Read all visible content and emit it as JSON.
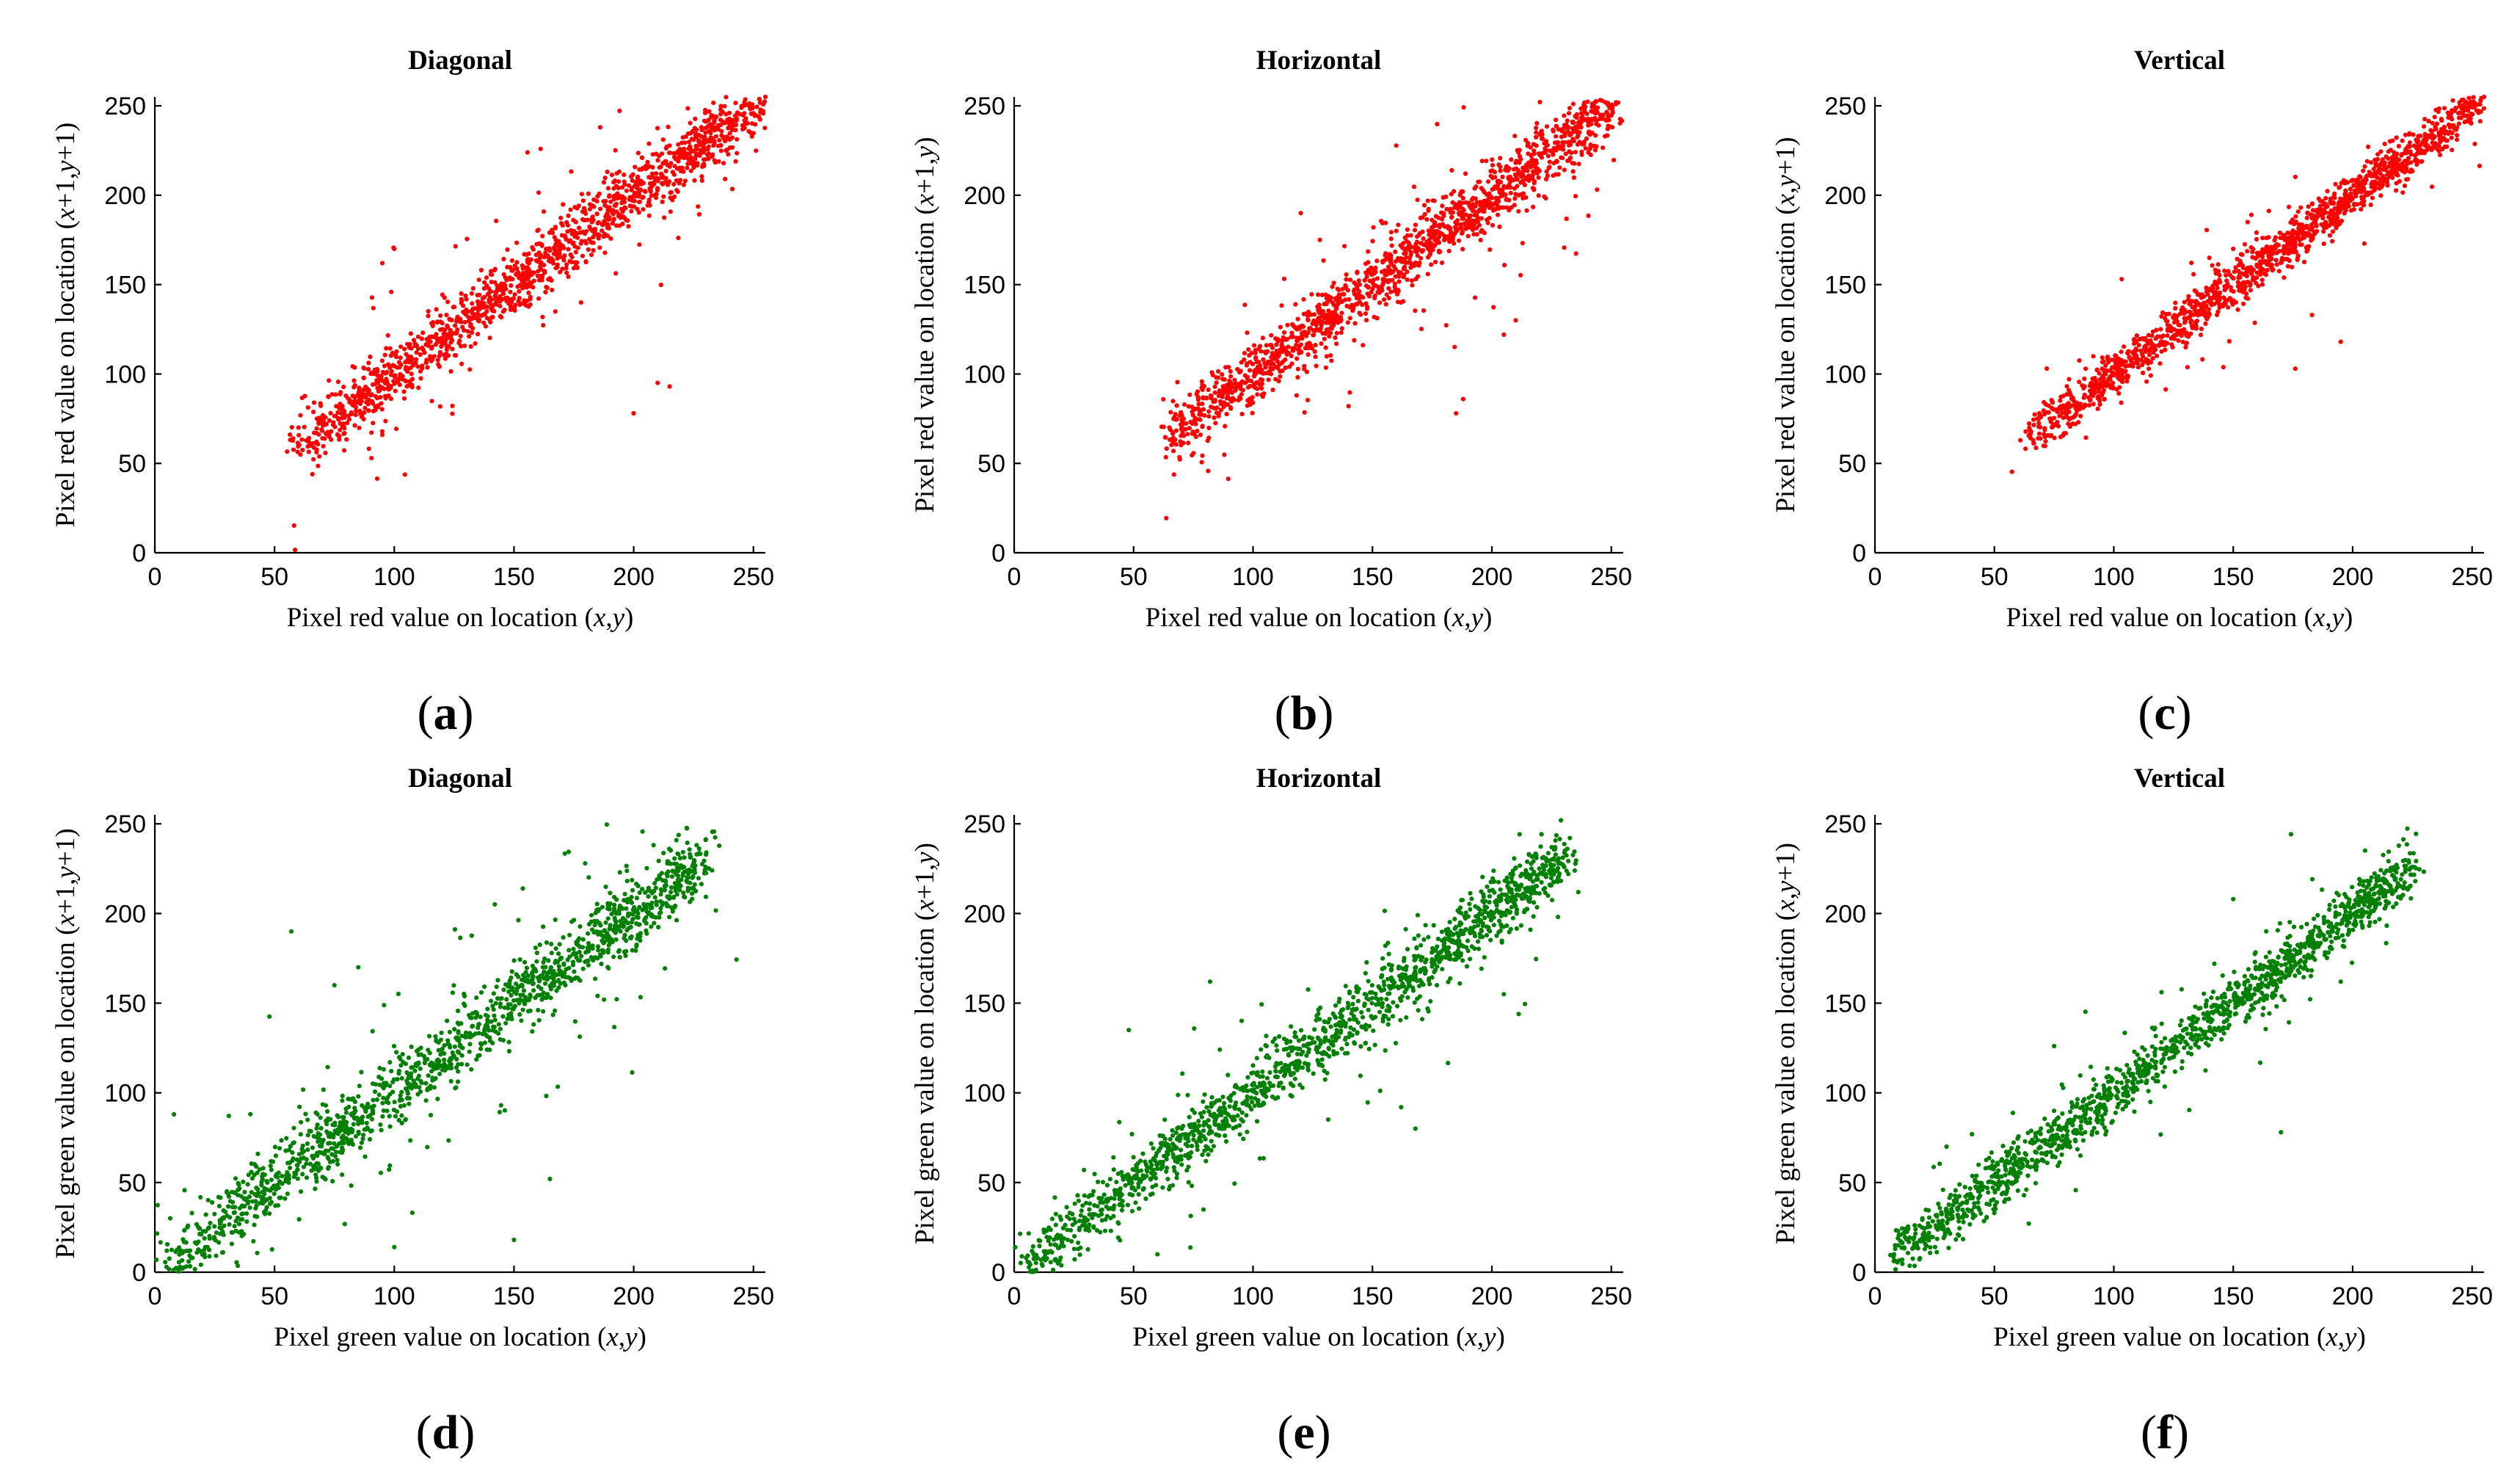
{
  "figure": {
    "caption_format": "({letter})"
  },
  "chart_data": [
    {
      "id": "a",
      "type": "scatter",
      "title": "Diagonal",
      "color": "#ff0000",
      "xlabel": "Pixel red value on location (x,y)",
      "ylabel": "Pixel red value on location (x+1,y+1)",
      "xlim": [
        0,
        255
      ],
      "ylim": [
        0,
        255
      ],
      "xticks": [
        0,
        50,
        100,
        150,
        200,
        250
      ],
      "yticks": [
        0,
        50,
        100,
        150,
        200,
        250
      ],
      "caption": "(a)",
      "trend": {
        "x": [
          58,
          255
        ],
        "slope": 1.0,
        "intercept": 0,
        "n_points": 1500,
        "spread": 8,
        "outlier_frac": 0.09,
        "seed": 11
      },
      "points": [
        [
          60,
          70
        ],
        [
          70,
          64
        ],
        [
          95,
          66
        ],
        [
          100,
          170
        ],
        [
          128,
          145
        ],
        [
          200,
          78
        ],
        [
          210,
          95
        ],
        [
          215,
          93
        ],
        [
          230,
          235
        ],
        [
          240,
          240
        ],
        [
          255,
          255
        ],
        [
          186,
          238
        ],
        [
          178,
          140
        ],
        [
          95,
          162
        ]
      ]
    },
    {
      "id": "b",
      "type": "scatter",
      "title": "Horizontal",
      "color": "#ff0000",
      "xlabel": "Pixel red value on location (x,y)",
      "ylabel": "Pixel red value on location (x+1,y)",
      "xlim": [
        0,
        255
      ],
      "ylim": [
        0,
        255
      ],
      "xticks": [
        0,
        50,
        100,
        150,
        200,
        250
      ],
      "yticks": [
        0,
        50,
        100,
        150,
        200,
        250
      ],
      "caption": "(b)",
      "trend": {
        "x": [
          65,
          252
        ],
        "slope": 1.0,
        "intercept": 0,
        "n_points": 1500,
        "spread": 8,
        "outlier_frac": 0.08,
        "seed": 23
      },
      "points": [
        [
          65,
          70
        ],
        [
          78,
          66
        ],
        [
          120,
          190
        ],
        [
          128,
          175
        ],
        [
          185,
          78
        ],
        [
          188,
          86
        ],
        [
          205,
          122
        ],
        [
          210,
          130
        ],
        [
          252,
          252
        ],
        [
          140,
          82
        ],
        [
          160,
          180
        ]
      ]
    },
    {
      "id": "c",
      "type": "scatter",
      "title": "Vertical",
      "color": "#ff0000",
      "xlabel": "Pixel red value on location (x,y)",
      "ylabel": "Pixel red value on location (x,y+1)",
      "xlim": [
        0,
        255
      ],
      "ylim": [
        0,
        255
      ],
      "xticks": [
        0,
        50,
        100,
        150,
        200,
        250
      ],
      "yticks": [
        0,
        50,
        100,
        150,
        200,
        250
      ],
      "caption": "(c)",
      "trend": {
        "x": [
          65,
          255
        ],
        "slope": 1.0,
        "intercept": 0,
        "n_points": 1500,
        "spread": 6,
        "outlier_frac": 0.05,
        "seed": 37
      },
      "points": [
        [
          65,
          66
        ],
        [
          68,
          75
        ],
        [
          195,
          118
        ],
        [
          176,
          103
        ],
        [
          183,
          133
        ],
        [
          255,
          255
        ],
        [
          150,
          170
        ],
        [
          140,
          165
        ]
      ]
    },
    {
      "id": "d",
      "type": "scatter",
      "title": "Diagonal",
      "color": "#008000",
      "xlabel": "Pixel green value on location (x,y)",
      "ylabel": "Pixel green value on location (x+1,y+1)",
      "xlim": [
        0,
        255
      ],
      "ylim": [
        0,
        255
      ],
      "xticks": [
        0,
        50,
        100,
        150,
        200,
        250
      ],
      "yticks": [
        0,
        50,
        100,
        150,
        200,
        250
      ],
      "caption": "(d)",
      "trend": {
        "x": [
          5,
          230
        ],
        "slope": 1.0,
        "intercept": 0,
        "n_points": 1500,
        "spread": 9,
        "outlier_frac": 0.09,
        "seed": 41
      },
      "points": [
        [
          5,
          12
        ],
        [
          8,
          88
        ],
        [
          57,
          190
        ],
        [
          100,
          14
        ],
        [
          150,
          18
        ],
        [
          165,
          52
        ],
        [
          225,
          228
        ],
        [
          230,
          226
        ],
        [
          75,
          160
        ],
        [
          85,
          170
        ]
      ]
    },
    {
      "id": "e",
      "type": "scatter",
      "title": "Horizontal",
      "color": "#008000",
      "xlabel": "Pixel green value on location (x,y)",
      "ylabel": "Pixel green value on location (x+1,y)",
      "xlim": [
        0,
        255
      ],
      "ylim": [
        0,
        255
      ],
      "xticks": [
        0,
        50,
        100,
        150,
        200,
        250
      ],
      "yticks": [
        0,
        50,
        100,
        150,
        200,
        250
      ],
      "caption": "(e)",
      "trend": {
        "x": [
          5,
          232
        ],
        "slope": 1.0,
        "intercept": 0,
        "n_points": 1500,
        "spread": 8,
        "outlier_frac": 0.08,
        "seed": 53
      },
      "points": [
        [
          5,
          8
        ],
        [
          82,
          162
        ],
        [
          48,
          135
        ],
        [
          162,
          92
        ],
        [
          168,
          80
        ],
        [
          205,
          155
        ],
        [
          232,
          222
        ],
        [
          225,
          230
        ],
        [
          60,
          10
        ]
      ]
    },
    {
      "id": "f",
      "type": "scatter",
      "title": "Vertical",
      "color": "#008000",
      "xlabel": "Pixel green value on location (x,y)",
      "ylabel": "Pixel green value on location (x,y+1)",
      "xlim": [
        0,
        255
      ],
      "ylim": [
        0,
        255
      ],
      "xticks": [
        0,
        50,
        100,
        150,
        200,
        250
      ],
      "yticks": [
        0,
        50,
        100,
        150,
        200,
        250
      ],
      "caption": "(f)",
      "trend": {
        "x": [
          8,
          225
        ],
        "slope": 1.0,
        "intercept": 0,
        "n_points": 1500,
        "spread": 7,
        "outlier_frac": 0.06,
        "seed": 67
      },
      "points": [
        [
          8,
          10
        ],
        [
          150,
          208
        ],
        [
          170,
          78
        ],
        [
          195,
          162
        ],
        [
          225,
          226
        ],
        [
          30,
          70
        ]
      ]
    }
  ]
}
